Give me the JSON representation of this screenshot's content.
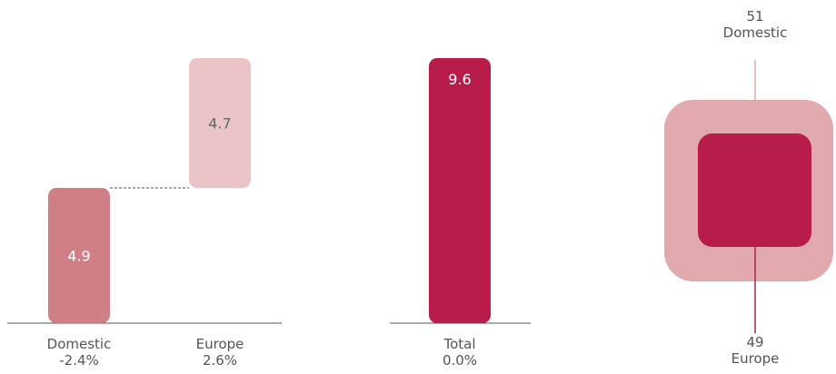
{
  "chart_data": [
    {
      "type": "bar",
      "subtype": "waterfall",
      "categories": [
        "Domestic",
        "Europe"
      ],
      "category_changes": [
        "-2.4%",
        "2.6%"
      ],
      "values": [
        4.9,
        4.7
      ],
      "value_labels": [
        "4.9",
        "4.7"
      ],
      "colors": [
        "#d17f86",
        "#ebc4c7"
      ],
      "ylim": [
        0,
        9.6
      ],
      "connector": "dashed"
    },
    {
      "type": "bar",
      "categories": [
        "Total"
      ],
      "category_changes": [
        "0.0%"
      ],
      "values": [
        9.6
      ],
      "value_labels": [
        "9.6"
      ],
      "colors": [
        "#b71c4a"
      ],
      "ylim": [
        0,
        9.6
      ]
    },
    {
      "type": "other",
      "subtype": "nested-squares",
      "series": [
        {
          "name": "Domestic",
          "value_label": "51",
          "color": "#e0aaaf"
        },
        {
          "name": "Europe",
          "value_label": "49",
          "color": "#b71c4a"
        }
      ]
    }
  ],
  "palette": {
    "axis": "#555555",
    "connector": "#555555",
    "label": "#555555",
    "bar_text_dark": "#666666",
    "bar_text_light": "#ffffff"
  }
}
